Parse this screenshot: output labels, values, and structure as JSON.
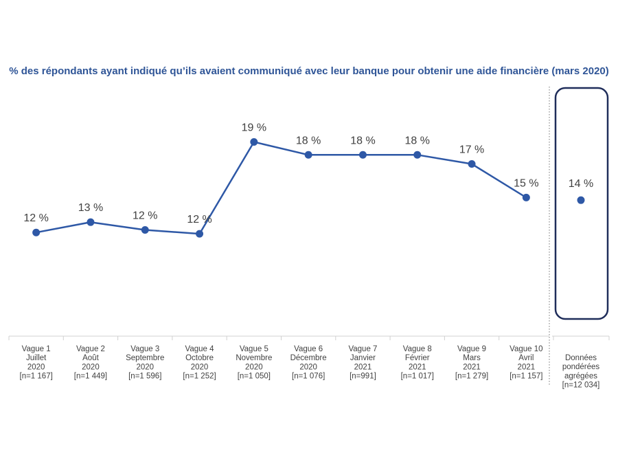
{
  "chart_data": {
    "type": "line",
    "title": "% des répondants ayant indiqué qu’ils avaient communiqué avec leur banque pour obtenir une aide financière (mars 2020)",
    "series_color": "#2e58a6",
    "ylim": [
      5,
      22
    ],
    "categories": [
      [
        "Vague 1",
        "Juillet",
        "2020",
        "[n=1 167]"
      ],
      [
        "Vague 2",
        "Août",
        "2020",
        "[n=1 449]"
      ],
      [
        "Vague 3",
        "Septembre",
        "2020",
        "[n=1 596]"
      ],
      [
        "Vague 4",
        "Octobre",
        "2020",
        "[n=1 252]"
      ],
      [
        "Vague 5",
        "Novembre",
        "2020",
        "[n=1 050]"
      ],
      [
        "Vague 6",
        "Décembre",
        "2020",
        "[n=1 076]"
      ],
      [
        "Vague 7",
        "Janvier",
        "2021",
        "[n=991]"
      ],
      [
        "Vague 8",
        "Février",
        "2021",
        "[n=1 017]"
      ],
      [
        "Vague 9",
        "Mars",
        "2021",
        "[n=1 279]"
      ],
      [
        "Vague 10",
        "Avril",
        "2021",
        "[n=1 157]"
      ]
    ],
    "values": [
      12.0,
      12.8,
      12.2,
      11.9,
      19.0,
      18.0,
      18.0,
      18.0,
      17.3,
      14.7
    ],
    "labels": [
      "12 %",
      "13 %",
      "12 %",
      "12 %",
      "19 %",
      "18 %",
      "18 %",
      "18 %",
      "17 %",
      "15 %"
    ],
    "aggregate": {
      "category": [
        "Données",
        "pondérées",
        "agrégées",
        "[n=12 034]"
      ],
      "value": 14.5,
      "label": "14 %",
      "box_color": "#1f2d5a"
    }
  }
}
